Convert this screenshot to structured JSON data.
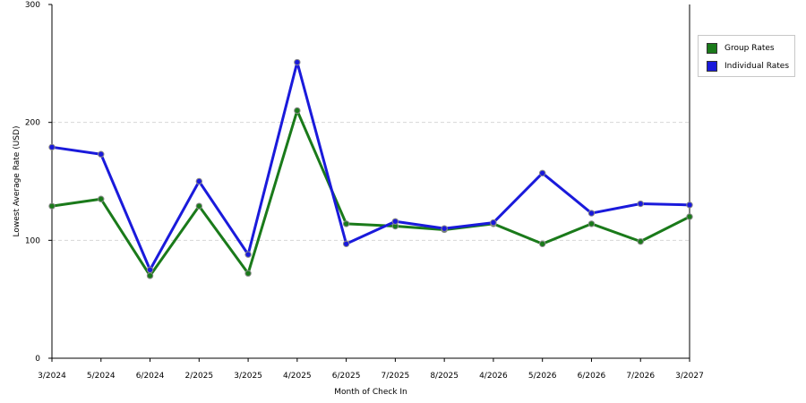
{
  "chart_data": {
    "type": "line",
    "title": "",
    "xlabel": "Month of Check In",
    "ylabel": "Lowest Average Rate (USD)",
    "ylim": [
      0,
      300
    ],
    "yticks": [
      0,
      100,
      200,
      300
    ],
    "grid": "horizontal dashed at 100 and 200",
    "legend_placement": "right",
    "categories": [
      "3/2024",
      "5/2024",
      "6/2024",
      "2/2025",
      "3/2025",
      "4/2025",
      "6/2025",
      "7/2025",
      "8/2025",
      "4/2026",
      "5/2026",
      "6/2026",
      "7/2026",
      "3/2027"
    ],
    "series": [
      {
        "name": "Group Rates",
        "color": "#1a7a1a",
        "values": [
          129,
          135,
          70,
          129,
          72,
          210,
          114,
          112,
          109,
          114,
          97,
          114,
          99,
          120
        ]
      },
      {
        "name": "Individual Rates",
        "color": "#1a1adb",
        "values": [
          179,
          173,
          75,
          150,
          88,
          251,
          97,
          116,
          110,
          115,
          157,
          123,
          131,
          130
        ]
      }
    ]
  }
}
